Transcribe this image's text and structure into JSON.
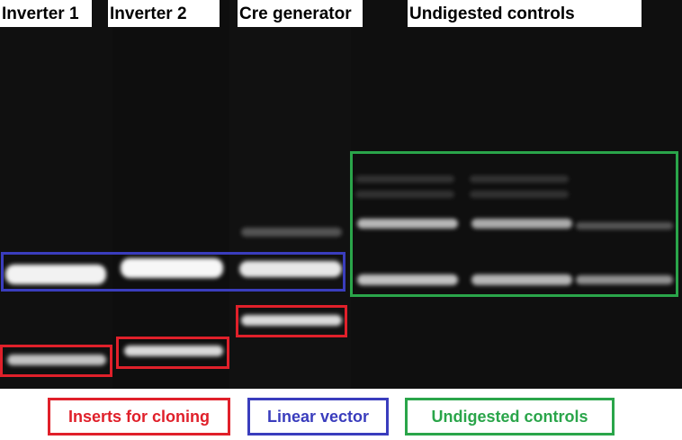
{
  "lane_labels": [
    "Inverter 1",
    "Inverter 2",
    "Cre generator",
    "Undigested controls"
  ],
  "legend": {
    "inserts": "Inserts for cloning",
    "vector": "Linear vector",
    "controls": "Undigested controls"
  },
  "colors": {
    "inserts": "#e0202a",
    "vector": "#3a3dbd",
    "controls": "#2aa54a",
    "gel_background": "#0c0c0c",
    "band": "#ffffff"
  }
}
